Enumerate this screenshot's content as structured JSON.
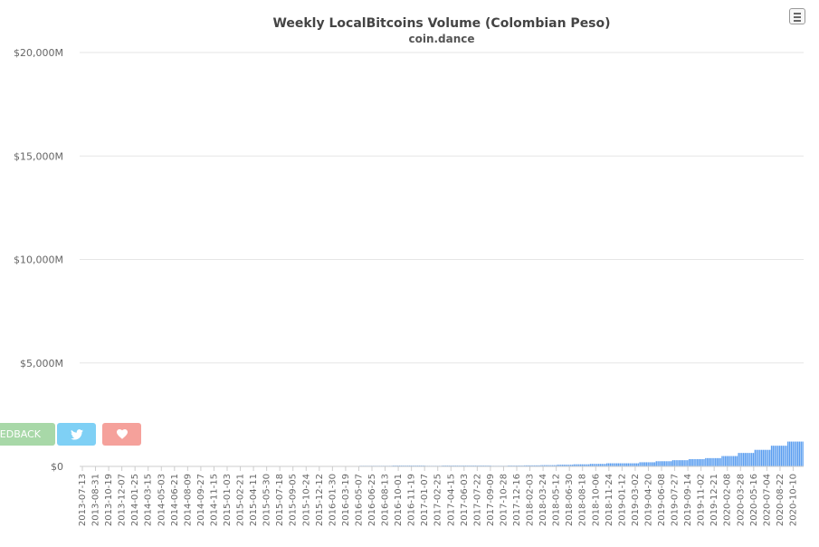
{
  "chart_data": {
    "type": "bar",
    "title": "Weekly LocalBitcoins Volume (Colombian Peso)",
    "subtitle": "coin.dance",
    "xlabel": "",
    "ylabel": "",
    "ylim": [
      0,
      20000
    ],
    "y_ticks": [
      "$0",
      "$5,000M",
      "$10,000M",
      "$15,000M",
      "$20,000M"
    ],
    "x_tick_labels": [
      "2013-07-13",
      "2013-08-31",
      "2013-10-19",
      "2013-12-07",
      "2014-01-25",
      "2014-03-15",
      "2014-05-03",
      "2014-06-21",
      "2014-08-09",
      "2014-09-27",
      "2014-11-15",
      "2015-01-03",
      "2015-02-21",
      "2015-04-11",
      "2015-05-30",
      "2015-07-18",
      "2015-09-05",
      "2015-10-24",
      "2015-12-12",
      "2016-01-30",
      "2016-03-19",
      "2016-05-07",
      "2016-06-25",
      "2016-08-13",
      "2016-10-01",
      "2016-11-19",
      "2017-01-07",
      "2017-02-25",
      "2017-04-15",
      "2017-06-03",
      "2017-07-22",
      "2017-09-09",
      "2017-10-28",
      "2017-12-16",
      "2018-02-03",
      "2018-03-24",
      "2018-05-12",
      "2018-06-30",
      "2018-08-18",
      "2018-10-06",
      "2018-11-24",
      "2019-01-12",
      "2019-03-02",
      "2019-04-20",
      "2019-06-08",
      "2019-07-27",
      "2019-09-14",
      "2019-11-02",
      "2019-12-21",
      "2020-02-08",
      "2020-03-28",
      "2020-05-16",
      "2020-07-04",
      "2020-08-22",
      "2020-10-10"
    ],
    "grid": true,
    "legend": "none",
    "bar_color": "#5b9ef0",
    "unit": "M COP",
    "values": [
      0,
      0,
      0,
      0,
      0,
      0,
      0,
      0,
      0,
      0,
      0,
      0,
      0,
      0,
      0,
      0,
      0,
      0,
      0,
      0,
      0,
      5,
      5,
      5,
      5,
      5,
      10,
      10,
      10,
      10,
      10,
      10,
      15,
      15,
      15,
      15,
      15,
      15,
      15,
      15,
      15,
      15,
      15,
      15,
      15,
      15,
      15,
      15,
      15,
      15,
      20,
      20,
      20,
      20,
      20,
      20,
      20,
      20,
      20,
      20,
      20,
      20,
      20,
      20,
      20,
      20,
      20,
      20,
      20,
      20,
      20,
      20,
      20,
      20,
      20,
      20,
      20,
      20,
      20,
      20,
      20,
      20,
      20,
      20,
      20,
      20,
      20,
      20,
      20,
      20,
      20,
      20,
      20,
      20,
      20,
      20,
      20,
      20,
      20,
      20,
      20,
      20,
      20,
      20,
      20,
      20,
      20,
      20,
      20,
      20,
      20,
      20,
      20,
      20,
      20,
      20,
      20,
      20,
      20,
      20,
      20,
      20,
      20,
      20,
      20,
      20,
      20,
      20,
      20,
      20,
      20,
      20,
      20,
      20,
      20,
      20,
      20,
      20,
      20,
      20,
      20,
      20,
      20,
      20,
      20,
      20,
      20,
      20,
      20,
      20,
      20,
      20,
      20,
      20,
      20,
      20,
      20,
      20,
      20,
      20,
      20,
      20,
      20,
      20,
      20,
      20,
      20,
      20,
      20,
      20,
      30,
      30,
      30,
      30,
      30,
      30,
      30,
      30,
      30,
      30,
      30,
      30,
      30,
      30,
      30,
      30,
      30,
      30,
      30,
      30,
      40,
      40,
      40,
      40,
      40,
      40,
      40,
      40,
      40,
      40,
      40,
      40,
      40,
      40,
      40,
      40,
      40,
      40,
      40,
      40,
      30,
      30,
      30,
      30,
      30,
      30,
      30,
      30,
      30,
      30,
      40,
      40,
      40,
      40,
      40,
      40,
      40,
      40,
      40,
      40,
      40,
      40,
      40,
      40,
      40,
      40,
      40,
      40,
      40,
      40,
      40,
      40,
      40,
      40,
      40,
      40,
      40,
      40,
      40,
      40,
      30,
      30,
      30,
      30,
      30,
      30,
      30,
      30,
      30,
      30,
      40,
      40,
      40,
      40,
      40,
      40,
      40,
      40,
      40,
      40,
      50,
      50,
      50,
      50,
      50,
      50,
      50,
      50,
      50,
      50,
      60,
      60,
      60,
      60,
      60,
      60,
      60,
      60,
      60,
      60,
      80,
      80,
      80,
      80,
      80,
      80,
      80,
      80,
      80,
      80,
      100,
      100,
      100,
      100,
      100,
      100,
      100,
      100,
      100,
      100,
      120,
      120,
      120,
      120,
      120,
      120,
      120,
      120,
      120,
      120,
      150,
      150,
      150,
      150,
      150,
      150,
      150,
      150,
      150,
      150,
      150,
      150,
      150,
      150,
      150,
      150,
      150,
      150,
      150,
      150,
      200,
      200,
      200,
      200,
      200,
      200,
      200,
      200,
      200,
      200,
      250,
      250,
      250,
      250,
      250,
      250,
      250,
      250,
      250,
      250,
      300,
      300,
      300,
      300,
      300,
      300,
      300,
      300,
      300,
      300,
      350,
      350,
      350,
      350,
      350,
      350,
      350,
      350,
      350,
      350,
      400,
      400,
      400,
      400,
      400,
      400,
      400,
      400,
      400,
      400,
      500,
      500,
      500,
      500,
      500,
      500,
      500,
      500,
      500,
      500,
      650,
      650,
      650,
      650,
      650,
      650,
      650,
      650,
      650,
      650,
      800,
      800,
      800,
      800,
      800,
      800,
      800,
      800,
      800,
      800,
      1000,
      1000,
      1000,
      1000,
      1000,
      1000,
      1000,
      1000,
      1000,
      1000,
      1200,
      1200,
      1200,
      1200,
      1200,
      1200,
      1200,
      1200,
      1200,
      1200
    ]
  },
  "buttons": {
    "feedback": "EDBACK"
  },
  "icons": {
    "menu": "hamburger-menu-icon",
    "twitter": "twitter-bird-icon",
    "heart": "heart-icon"
  }
}
